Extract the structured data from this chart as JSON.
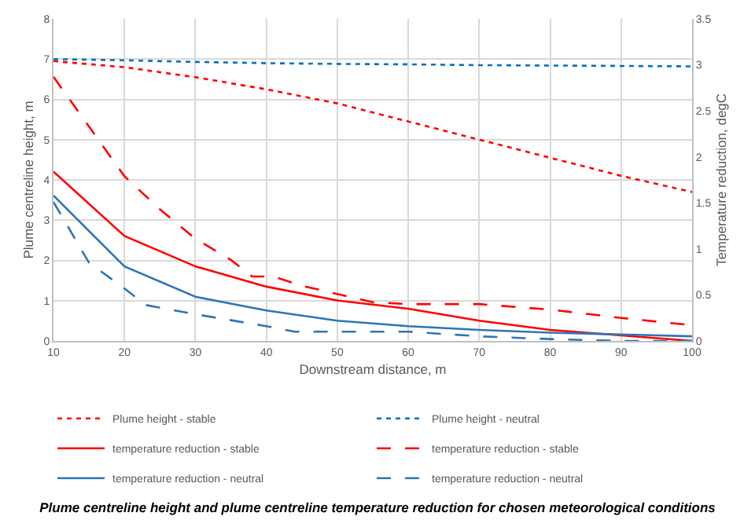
{
  "chart_data": {
    "type": "line",
    "title": "Plume centreline height and plume centreline temperature reduction for chosen meteorological conditions",
    "xlabel": "Downstream distance, m",
    "ylabel": "Plume centreline height, m",
    "y2label": "Temperature reduction, degC",
    "xlim": [
      10,
      100
    ],
    "xticks": [
      10,
      20,
      30,
      40,
      50,
      60,
      70,
      80,
      90,
      100
    ],
    "ylim": [
      0,
      8
    ],
    "yticks": [
      0,
      1,
      2,
      3,
      4,
      5,
      6,
      7,
      8
    ],
    "y2lim": [
      0,
      3.5
    ],
    "y2ticks": [
      0,
      0.5,
      1,
      1.5,
      2,
      2.5,
      3,
      3.5
    ],
    "grid": true,
    "legend": "bottom",
    "marker": "none",
    "series": [
      {
        "name": "Plume height - stable",
        "color": "#ff0000",
        "line_style": "dotted",
        "x": [
          10,
          20,
          30,
          40,
          50,
          60,
          70,
          80,
          90,
          100
        ],
        "values": [
          6.95,
          6.8,
          6.55,
          6.25,
          5.9,
          5.45,
          5.0,
          4.55,
          4.1,
          3.7
        ]
      },
      {
        "name": "Plume height - neutral",
        "color": "#0070c0",
        "line_style": "dotted",
        "x": [
          10,
          20,
          30,
          40,
          50,
          60,
          70,
          80,
          90,
          100
        ],
        "values": [
          7.0,
          6.97,
          6.93,
          6.9,
          6.88,
          6.87,
          6.85,
          6.84,
          6.83,
          6.82
        ]
      },
      {
        "name": "temperature reduction - stable",
        "color": "#ff0000",
        "line_style": "solid",
        "axis": "y2",
        "x": [
          10,
          20,
          30,
          40,
          50,
          60,
          70,
          80,
          90,
          100
        ],
        "values": [
          1.84,
          1.14,
          0.81,
          0.59,
          0.44,
          0.35,
          0.22,
          0.12,
          0.06,
          0.0
        ]
      },
      {
        "name": "temperature reduction - stable",
        "color": "#ff0000",
        "line_style": "dashed",
        "axis": "y2",
        "x": [
          10,
          15,
          20,
          25,
          30,
          35,
          38,
          41,
          45,
          50,
          55,
          60,
          70,
          80,
          90,
          100
        ],
        "values": [
          2.87,
          2.33,
          1.79,
          1.43,
          1.11,
          0.88,
          0.7,
          0.7,
          0.6,
          0.51,
          0.42,
          0.4,
          0.4,
          0.34,
          0.25,
          0.17
        ]
      },
      {
        "name": "temperature reduction - neutral",
        "color": "#2e75b6",
        "line_style": "solid",
        "axis": "y2",
        "x": [
          10,
          20,
          30,
          40,
          50,
          60,
          70,
          80,
          90,
          100
        ],
        "values": [
          1.58,
          0.81,
          0.48,
          0.33,
          0.22,
          0.16,
          0.12,
          0.09,
          0.07,
          0.05
        ]
      },
      {
        "name": "temperature reduction - neutral",
        "color": "#2e75b6",
        "line_style": "dashed",
        "axis": "y2",
        "x": [
          10,
          15,
          20,
          23,
          30,
          40,
          44,
          50,
          60,
          70,
          80,
          90,
          100
        ],
        "values": [
          1.51,
          0.85,
          0.57,
          0.39,
          0.29,
          0.16,
          0.1,
          0.1,
          0.1,
          0.05,
          0.02,
          0.0,
          0.0
        ]
      }
    ]
  }
}
